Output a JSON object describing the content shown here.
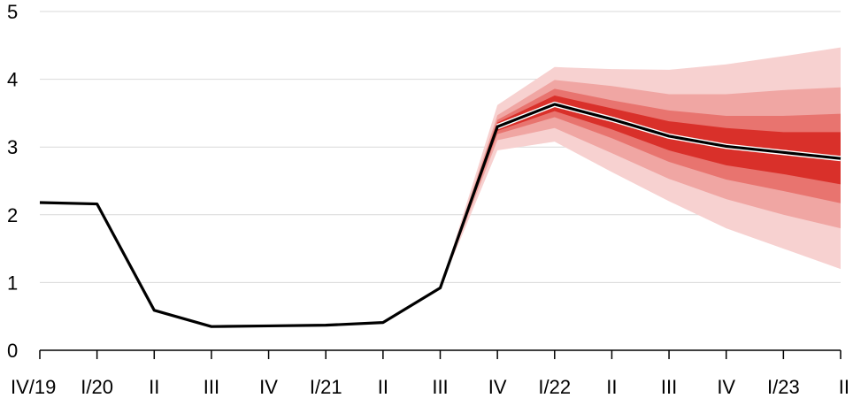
{
  "chart_data": {
    "type": "area",
    "categories": [
      "IV/19",
      "I/20",
      "II",
      "III",
      "IV",
      "I/21",
      "II",
      "III",
      "IV",
      "I/22",
      "II",
      "III",
      "IV",
      "I/23",
      "II"
    ],
    "ylim": [
      0,
      5
    ],
    "y_ticks": [
      0,
      1,
      2,
      3,
      4,
      5
    ],
    "grid": true,
    "series": [
      {
        "values": [
          2.18,
          2.16,
          0.59,
          0.35,
          0.36,
          0.37,
          0.41,
          0.92,
          3.3,
          3.63,
          3.41,
          3.16,
          3.01,
          2.92,
          2.83
        ]
      }
    ],
    "fan": {
      "start_index": 7,
      "bands": [
        {
          "color": "#f7d1d0",
          "lower": [
            0.92,
            2.95,
            3.08,
            2.63,
            2.2,
            1.8,
            1.5,
            1.2
          ],
          "upper": [
            0.92,
            3.62,
            4.18,
            4.15,
            4.14,
            4.22,
            4.34,
            4.47
          ]
        },
        {
          "color": "#f0a6a3",
          "lower": [
            0.92,
            3.1,
            3.28,
            2.91,
            2.53,
            2.23,
            2.0,
            1.8
          ],
          "upper": [
            0.92,
            3.47,
            3.99,
            3.9,
            3.78,
            3.78,
            3.84,
            3.88
          ]
        },
        {
          "color": "#e8746f",
          "lower": [
            0.92,
            3.19,
            3.44,
            3.13,
            2.78,
            2.52,
            2.35,
            2.17
          ],
          "upper": [
            0.92,
            3.4,
            3.86,
            3.69,
            3.54,
            3.46,
            3.46,
            3.49
          ]
        },
        {
          "color": "#d9302a",
          "lower": [
            0.92,
            3.24,
            3.53,
            3.26,
            2.95,
            2.73,
            2.6,
            2.45
          ],
          "upper": [
            0.92,
            3.36,
            3.76,
            3.57,
            3.38,
            3.28,
            3.22,
            3.22
          ]
        }
      ]
    },
    "colors": {
      "line": "#000000",
      "line_halo": "#ffffff",
      "grid": "#d9d9d9",
      "axis": "#000000"
    }
  }
}
